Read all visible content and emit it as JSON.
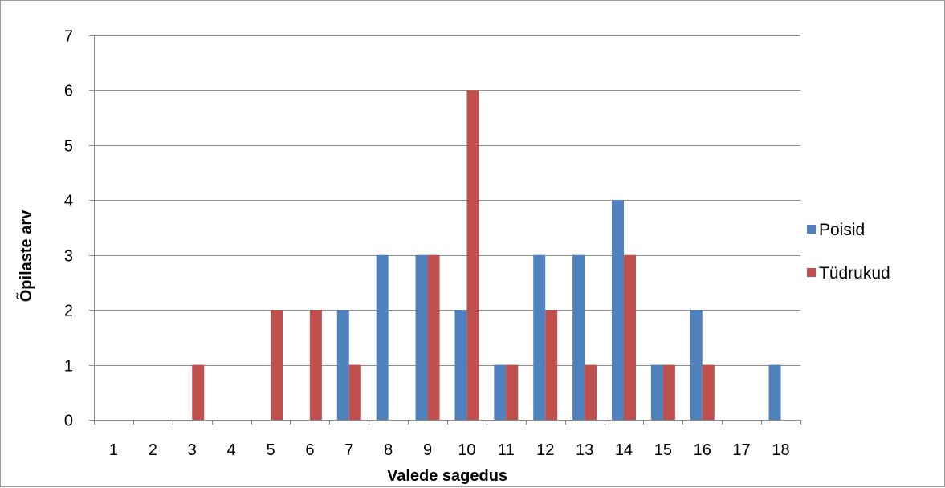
{
  "chart_data": {
    "type": "bar",
    "categories": [
      "1",
      "2",
      "3",
      "4",
      "5",
      "6",
      "7",
      "8",
      "9",
      "10",
      "11",
      "12",
      "13",
      "14",
      "15",
      "16",
      "17",
      "18"
    ],
    "series": [
      {
        "name": "Poisid",
        "color": "#4F81BD",
        "values": [
          0,
          0,
          0,
          0,
          0,
          0,
          2,
          3,
          3,
          2,
          1,
          3,
          3,
          4,
          1,
          2,
          0,
          1
        ]
      },
      {
        "name": "Tüdrukud",
        "color": "#C0504D",
        "values": [
          0,
          0,
          1,
          0,
          2,
          2,
          1,
          0,
          3,
          6,
          1,
          2,
          1,
          3,
          1,
          1,
          0,
          0
        ]
      }
    ],
    "title": "",
    "xlabel": "Valede sagedus",
    "ylabel": "Õpilaste arv",
    "ylim": [
      0,
      7
    ],
    "yticks": [
      0,
      1,
      2,
      3,
      4,
      5,
      6,
      7
    ],
    "grid": true,
    "legend_position": "right"
  }
}
